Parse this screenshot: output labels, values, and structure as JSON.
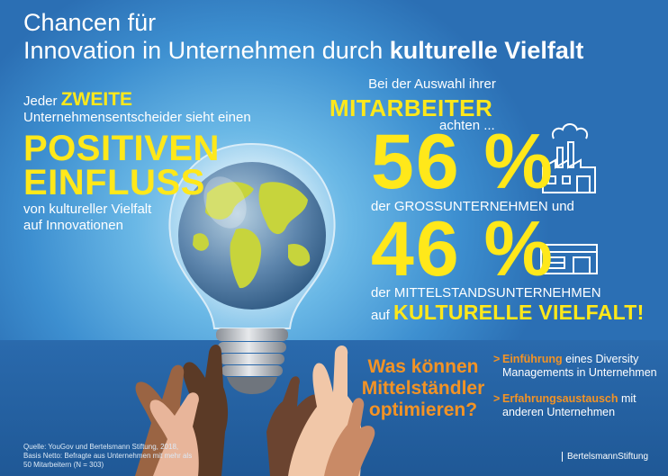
{
  "title": {
    "line1": "Chancen für",
    "line2_plain": "Innovation in Unternehmen durch ",
    "line2_bold": "kulturelle Vielfalt"
  },
  "left": {
    "jeder": "Jeder ",
    "zweite": "ZWEITE",
    "line2": "Unternehmensentscheider sieht einen",
    "positiven": "POSITIVEN",
    "einfluss": "EINFLUSS",
    "line3": "von kultureller Vielfalt",
    "line4": "auf Innovationen"
  },
  "right": {
    "intro": "Bei der Auswahl ihrer",
    "mitarbeiter": "MITARBEITER",
    "achten": "achten ...",
    "pct1": "56 %",
    "desc1": "der GROSSUNTERNEHMEN und",
    "pct2": "46 %",
    "desc2": "der MITTELSTANDSUNTERNEHMEN",
    "auf": "auf ",
    "kulturelle": "KULTURELLE VIELFALT!"
  },
  "question": {
    "line1": "Was können",
    "line2": "Mittelständler",
    "line3": "optimieren?"
  },
  "bullets": [
    {
      "arrow": ">",
      "key": "Einführung",
      "rest": " eines Diversity Managements in Unternehmen"
    },
    {
      "arrow": ">",
      "key": "Erfahrungsaustausch",
      "rest": " mit anderen Unternehmen"
    }
  ],
  "source": "Quelle: YouGov und Bertelsmann Stiftung, 2018, Basis Netto: Befragte aus Unternehmen mit mehr als 50 Mitarbeitern (N = 303)",
  "brand": "BertelsmannStiftung",
  "icons": {
    "factory": "factory-icon",
    "building": "building-icon",
    "bulb": "lightbulb-globe-icon",
    "hands": "raised-hands-icon"
  },
  "colors": {
    "accent_yellow": "#ffe81a",
    "accent_orange": "#f39325",
    "background_blue": "#3d8fd0",
    "band_blue": "#1f5896"
  }
}
